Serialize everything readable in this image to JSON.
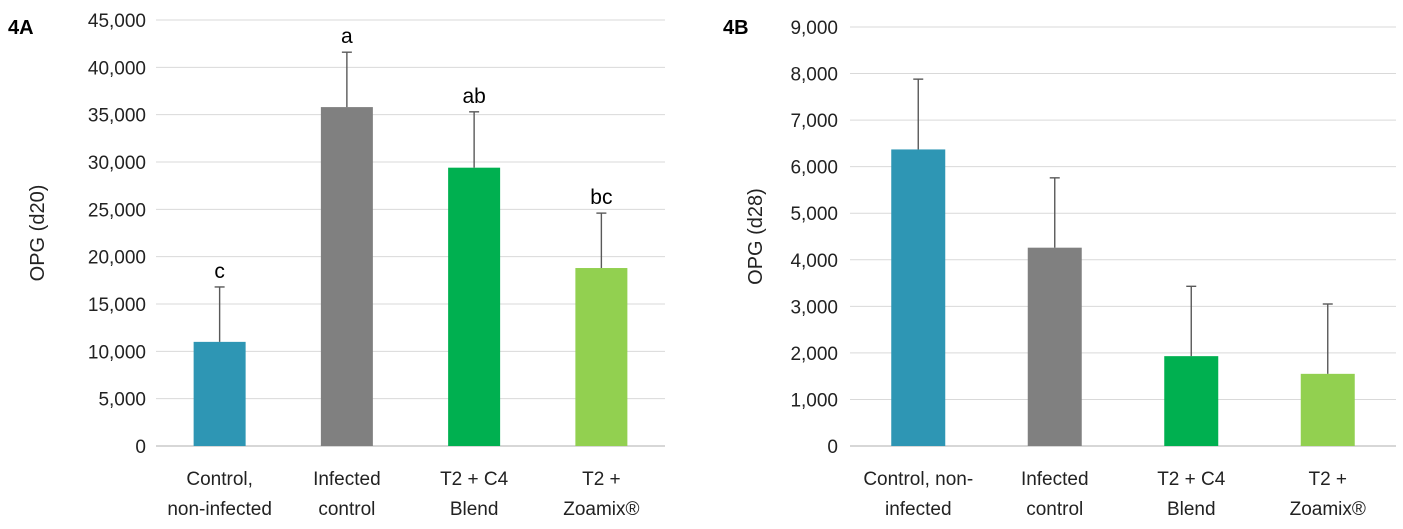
{
  "chart_data": [
    {
      "type": "bar",
      "panel_label": "4A",
      "ylabel": "OPG (d20)",
      "xlabel": "",
      "ylim": [
        0,
        45000
      ],
      "yticks": [
        0,
        5000,
        10000,
        15000,
        20000,
        25000,
        30000,
        35000,
        40000,
        45000
      ],
      "ytick_labels": [
        "0",
        "5,000",
        "10,000",
        "15,000",
        "20,000",
        "25,000",
        "30,000",
        "35,000",
        "40,000",
        "45,000"
      ],
      "grid": true,
      "categories": [
        [
          "Control,",
          "non-infected"
        ],
        [
          "Infected",
          "control"
        ],
        [
          "T2 + C4",
          "Blend"
        ],
        [
          "T2 +",
          "Zoamix®"
        ]
      ],
      "values": [
        11000,
        35800,
        29400,
        18800
      ],
      "error_upper": [
        16800,
        41600,
        35300,
        24600
      ],
      "significance_labels": [
        "c",
        "a",
        "ab",
        "bc"
      ],
      "colors": [
        "#2e96b4",
        "#808080",
        "#00b050",
        "#92d050"
      ]
    },
    {
      "type": "bar",
      "panel_label": "4B",
      "ylabel": "OPG (d28)",
      "xlabel": "",
      "ylim": [
        0,
        9000
      ],
      "yticks": [
        0,
        1000,
        2000,
        3000,
        4000,
        5000,
        6000,
        7000,
        8000,
        9000
      ],
      "ytick_labels": [
        "0",
        "1,000",
        "2,000",
        "3,000",
        "4,000",
        "5,000",
        "6,000",
        "7,000",
        "8,000",
        "9,000"
      ],
      "grid": true,
      "categories": [
        [
          "Control, non-",
          "infected"
        ],
        [
          "Infected",
          "control"
        ],
        [
          "T2 + C4",
          "Blend"
        ],
        [
          "T2 +",
          "Zoamix®"
        ]
      ],
      "values": [
        6370,
        4260,
        1930,
        1550
      ],
      "error_upper": [
        7880,
        5760,
        3430,
        3050
      ],
      "significance_labels": [],
      "colors": [
        "#2e96b4",
        "#808080",
        "#00b050",
        "#92d050"
      ]
    }
  ]
}
